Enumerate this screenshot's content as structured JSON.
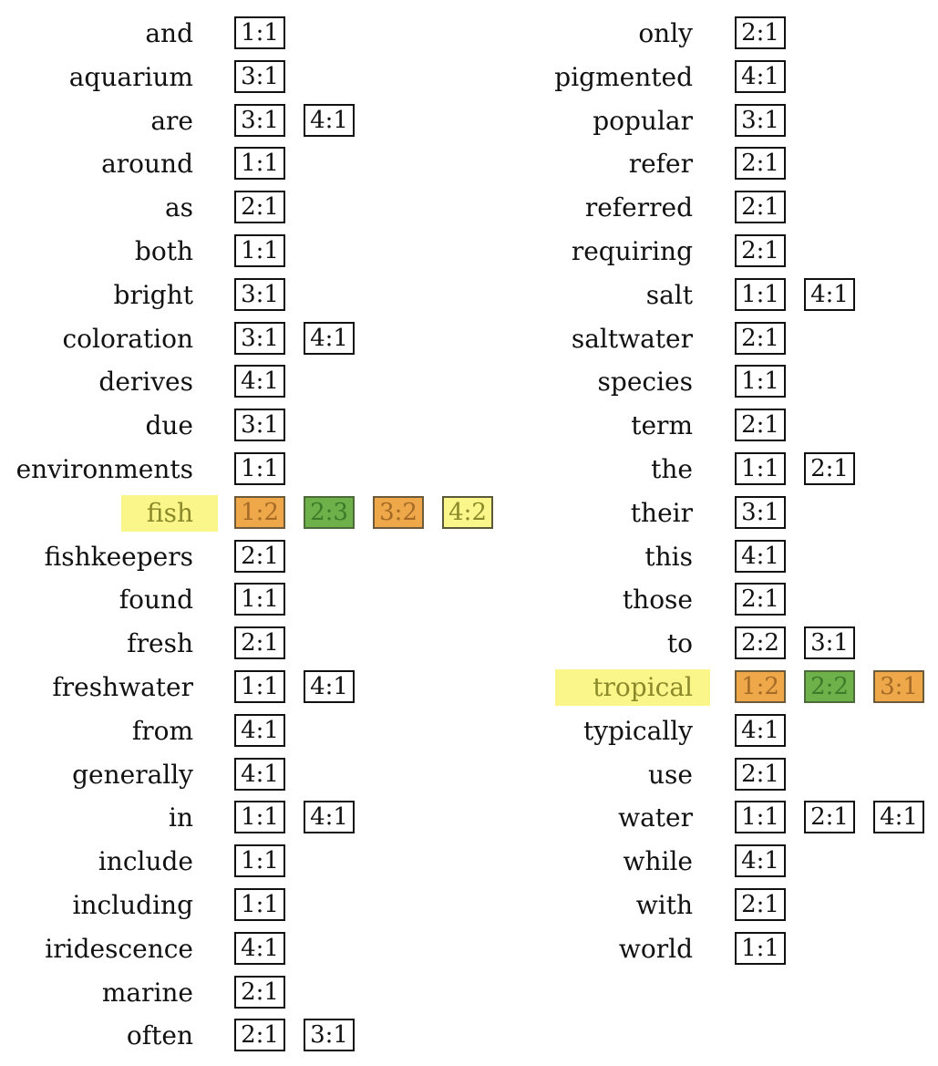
{
  "palette": {
    "highlight_word": "#fbf68a",
    "orange": "#eea84a",
    "green": "#6eb04a",
    "yellow": "#fbf68a"
  },
  "left_column": [
    {
      "word": "and",
      "tags": [
        {
          "label": "1:1"
        }
      ]
    },
    {
      "word": "aquarium",
      "tags": [
        {
          "label": "3:1"
        }
      ]
    },
    {
      "word": "are",
      "tags": [
        {
          "label": "3:1"
        },
        {
          "label": "4:1"
        }
      ]
    },
    {
      "word": "around",
      "tags": [
        {
          "label": "1:1"
        }
      ]
    },
    {
      "word": "as",
      "tags": [
        {
          "label": "2:1"
        }
      ]
    },
    {
      "word": "both",
      "tags": [
        {
          "label": "1:1"
        }
      ]
    },
    {
      "word": "bright",
      "tags": [
        {
          "label": "3:1"
        }
      ]
    },
    {
      "word": "coloration",
      "tags": [
        {
          "label": "3:1"
        },
        {
          "label": "4:1"
        }
      ]
    },
    {
      "word": "derives",
      "tags": [
        {
          "label": "4:1"
        }
      ]
    },
    {
      "word": "due",
      "tags": [
        {
          "label": "3:1"
        }
      ]
    },
    {
      "word": "environments",
      "tags": [
        {
          "label": "1:1"
        }
      ]
    },
    {
      "word": "fish",
      "highlight": true,
      "tags": [
        {
          "label": "1:2",
          "color": "orange"
        },
        {
          "label": "2:3",
          "color": "green"
        },
        {
          "label": "3:2",
          "color": "orange"
        },
        {
          "label": "4:2",
          "color": "yellow"
        }
      ]
    },
    {
      "word": "fishkeepers",
      "tags": [
        {
          "label": "2:1"
        }
      ]
    },
    {
      "word": "found",
      "tags": [
        {
          "label": "1:1"
        }
      ]
    },
    {
      "word": "fresh",
      "tags": [
        {
          "label": "2:1"
        }
      ]
    },
    {
      "word": "freshwater",
      "tags": [
        {
          "label": "1:1"
        },
        {
          "label": "4:1"
        }
      ]
    },
    {
      "word": "from",
      "tags": [
        {
          "label": "4:1"
        }
      ]
    },
    {
      "word": "generally",
      "tags": [
        {
          "label": "4:1"
        }
      ]
    },
    {
      "word": "in",
      "tags": [
        {
          "label": "1:1"
        },
        {
          "label": "4:1"
        }
      ]
    },
    {
      "word": "include",
      "tags": [
        {
          "label": "1:1"
        }
      ]
    },
    {
      "word": "including",
      "tags": [
        {
          "label": "1:1"
        }
      ]
    },
    {
      "word": "iridescence",
      "tags": [
        {
          "label": "4:1"
        }
      ]
    },
    {
      "word": "marine",
      "tags": [
        {
          "label": "2:1"
        }
      ]
    },
    {
      "word": "often",
      "tags": [
        {
          "label": "2:1"
        },
        {
          "label": "3:1"
        }
      ]
    }
  ],
  "right_column": [
    {
      "word": "only",
      "tags": [
        {
          "label": "2:1"
        }
      ]
    },
    {
      "word": "pigmented",
      "tags": [
        {
          "label": "4:1"
        }
      ]
    },
    {
      "word": "popular",
      "tags": [
        {
          "label": "3:1"
        }
      ]
    },
    {
      "word": "refer",
      "tags": [
        {
          "label": "2:1"
        }
      ]
    },
    {
      "word": "referred",
      "tags": [
        {
          "label": "2:1"
        }
      ]
    },
    {
      "word": "requiring",
      "tags": [
        {
          "label": "2:1"
        }
      ]
    },
    {
      "word": "salt",
      "tags": [
        {
          "label": "1:1"
        },
        {
          "label": "4:1"
        }
      ]
    },
    {
      "word": "saltwater",
      "tags": [
        {
          "label": "2:1"
        }
      ]
    },
    {
      "word": "species",
      "tags": [
        {
          "label": "1:1"
        }
      ]
    },
    {
      "word": "term",
      "tags": [
        {
          "label": "2:1"
        }
      ]
    },
    {
      "word": "the",
      "tags": [
        {
          "label": "1:1"
        },
        {
          "label": "2:1"
        }
      ]
    },
    {
      "word": "their",
      "tags": [
        {
          "label": "3:1"
        }
      ]
    },
    {
      "word": "this",
      "tags": [
        {
          "label": "4:1"
        }
      ]
    },
    {
      "word": "those",
      "tags": [
        {
          "label": "2:1"
        }
      ]
    },
    {
      "word": "to",
      "tags": [
        {
          "label": "2:2"
        },
        {
          "label": "3:1"
        }
      ]
    },
    {
      "word": "tropical",
      "highlight": true,
      "tags": [
        {
          "label": "1:2",
          "color": "orange"
        },
        {
          "label": "2:2",
          "color": "green"
        },
        {
          "label": "3:1",
          "color": "orange"
        }
      ]
    },
    {
      "word": "typically",
      "tags": [
        {
          "label": "4:1"
        }
      ]
    },
    {
      "word": "use",
      "tags": [
        {
          "label": "2:1"
        }
      ]
    },
    {
      "word": "water",
      "tags": [
        {
          "label": "1:1"
        },
        {
          "label": "2:1"
        },
        {
          "label": "4:1"
        }
      ]
    },
    {
      "word": "while",
      "tags": [
        {
          "label": "4:1"
        }
      ]
    },
    {
      "word": "with",
      "tags": [
        {
          "label": "2:1"
        }
      ]
    },
    {
      "word": "world",
      "tags": [
        {
          "label": "1:1"
        }
      ]
    }
  ]
}
